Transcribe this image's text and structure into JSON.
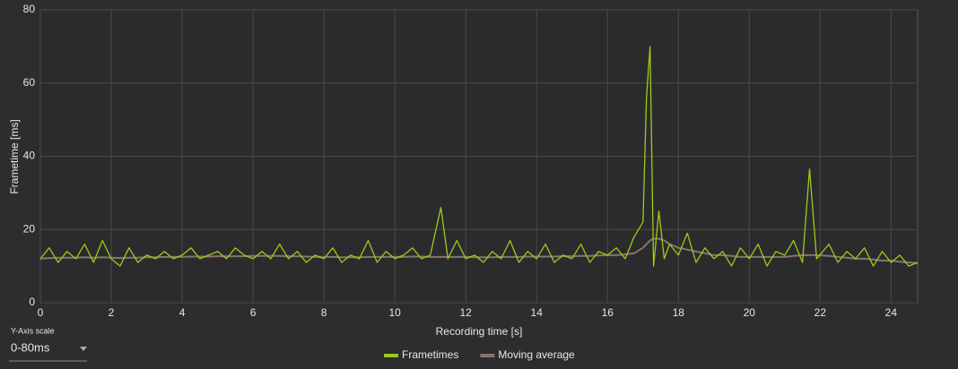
{
  "chart_data": {
    "type": "line",
    "x_label": "Recording time [s]",
    "y_label": "Frametime [ms]",
    "x": [
      0,
      0.25,
      0.5,
      0.75,
      1,
      1.25,
      1.5,
      1.75,
      2,
      2.25,
      2.5,
      2.75,
      3,
      3.25,
      3.5,
      3.75,
      4,
      4.25,
      4.5,
      4.75,
      5,
      5.25,
      5.5,
      5.75,
      6,
      6.25,
      6.5,
      6.75,
      7,
      7.25,
      7.5,
      7.75,
      8,
      8.25,
      8.5,
      8.75,
      9,
      9.25,
      9.5,
      9.75,
      10,
      10.25,
      10.5,
      10.75,
      11,
      11.3,
      11.5,
      11.75,
      12,
      12.25,
      12.5,
      12.75,
      13,
      13.25,
      13.5,
      13.75,
      14,
      14.25,
      14.5,
      14.75,
      15,
      15.25,
      15.5,
      15.75,
      16,
      16.25,
      16.5,
      16.75,
      17,
      17.1,
      17.2,
      17.3,
      17.45,
      17.6,
      17.75,
      18,
      18.25,
      18.5,
      18.75,
      19,
      19.25,
      19.5,
      19.75,
      20,
      20.25,
      20.5,
      20.75,
      21,
      21.25,
      21.5,
      21.7,
      21.9,
      22.25,
      22.5,
      22.75,
      23,
      23.25,
      23.5,
      23.75,
      24,
      24.25,
      24.5,
      24.75
    ],
    "series": [
      {
        "name": "Frametimes",
        "color": "#9ccc16",
        "values": [
          12,
          15,
          11,
          14,
          12,
          16,
          11,
          17,
          12,
          10,
          15,
          11,
          13,
          12,
          14,
          12,
          13,
          15,
          12,
          13,
          14,
          12,
          15,
          13,
          12,
          14,
          12,
          16,
          12,
          14,
          11,
          13,
          12,
          15,
          11,
          13,
          12,
          17,
          11,
          14,
          12,
          13,
          15,
          12,
          13,
          26,
          12,
          17,
          12,
          13,
          11,
          14,
          12,
          17,
          11,
          14,
          12,
          16,
          11,
          13,
          12,
          16,
          11,
          14,
          13,
          15,
          12,
          18,
          22,
          56,
          70,
          10,
          25,
          12,
          16,
          13,
          19,
          11,
          15,
          12,
          14,
          10,
          15,
          12,
          16,
          10,
          14,
          13,
          17,
          11,
          36.5,
          12,
          16,
          11,
          14,
          12,
          15,
          10,
          14,
          11,
          13,
          10,
          11
        ]
      },
      {
        "name": "Moving average",
        "color": "#8a736e",
        "values": [
          12,
          12.2,
          12.3,
          12.3,
          12.3,
          12.4,
          12.3,
          12.4,
          12.3,
          12.2,
          12.3,
          12.3,
          12.4,
          12.4,
          12.5,
          12.5,
          12.5,
          12.6,
          12.6,
          12.6,
          12.7,
          12.7,
          12.7,
          12.7,
          12.8,
          12.8,
          12.8,
          12.8,
          12.7,
          12.7,
          12.6,
          12.5,
          12.5,
          12.5,
          12.4,
          12.4,
          12.4,
          12.5,
          12.5,
          12.5,
          12.5,
          12.5,
          12.6,
          12.6,
          12.5,
          12.5,
          12.5,
          12.5,
          12.5,
          12.4,
          12.4,
          12.4,
          12.5,
          12.5,
          12.5,
          12.6,
          12.6,
          12.6,
          12.6,
          12.7,
          12.7,
          12.8,
          12.8,
          12.9,
          13,
          13,
          13.2,
          13.5,
          15,
          16,
          17,
          17.5,
          17.5,
          17,
          16,
          15,
          14.5,
          14,
          13.5,
          13,
          13,
          12.8,
          12.5,
          12.5,
          12.5,
          12.5,
          12.5,
          12.5,
          12.8,
          13,
          13,
          13,
          12.8,
          12.5,
          12.3,
          12,
          12,
          11.8,
          11.5,
          11.5,
          11.2,
          11,
          10.8
        ]
      }
    ],
    "xlim": [
      0,
      24.75
    ],
    "ylim": [
      0,
      80
    ],
    "xticks": [
      0,
      2,
      4,
      6,
      8,
      10,
      12,
      14,
      16,
      18,
      20,
      22,
      24
    ],
    "yticks": [
      0,
      20,
      40,
      60,
      80
    ],
    "grid": true,
    "legend": "bottom"
  },
  "controls": {
    "y_axis_scale_label": "Y-Axis scale",
    "y_axis_scale_value": "0-80ms"
  }
}
